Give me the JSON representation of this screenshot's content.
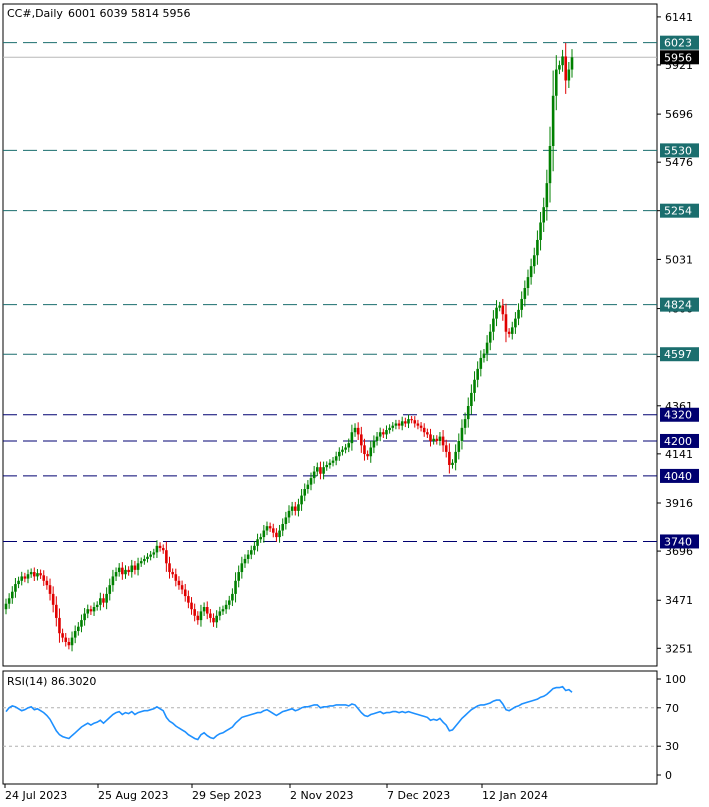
{
  "header": {
    "symbol": "CC#,Daily",
    "ohlc": "6001 6039 5814 5956"
  },
  "rsi_panel": {
    "label": "RSI(14) 86.3020"
  },
  "colors": {
    "bull": "#008000",
    "bear": "#e00000",
    "teal_level": "#1b6e6e",
    "navy_level": "#000070",
    "rsi_line": "#1e90ff",
    "price_label_bg": "#000000"
  },
  "chart_data": [
    {
      "type": "candlestick",
      "title": "CC#,Daily",
      "ylim": [
        3170,
        6200
      ],
      "y_ticks": [
        6141,
        5921,
        5696,
        5476,
        5254,
        5031,
        4806,
        4586,
        4361,
        4141,
        3916,
        3696,
        3471,
        3251
      ],
      "x_ticks": [
        "24 Jul 2023",
        "25 Aug 2023",
        "29 Sep 2023",
        "2 Nov 2023",
        "7 Dec 2023",
        "12 Jan 2024"
      ],
      "current_price": 5956,
      "levels": [
        {
          "value": 6023,
          "style": "teal"
        },
        {
          "value": 5530,
          "style": "teal"
        },
        {
          "value": 5254,
          "style": "teal"
        },
        {
          "value": 4824,
          "style": "teal"
        },
        {
          "value": 4597,
          "style": "teal"
        },
        {
          "value": 4320,
          "style": "navy"
        },
        {
          "value": 4200,
          "style": "navy"
        },
        {
          "value": 4040,
          "style": "navy"
        },
        {
          "value": 3740,
          "style": "navy"
        }
      ],
      "closes": [
        3455,
        3480,
        3510,
        3545,
        3560,
        3580,
        3570,
        3590,
        3600,
        3580,
        3595,
        3585,
        3560,
        3540,
        3500,
        3450,
        3390,
        3320,
        3300,
        3280,
        3265,
        3300,
        3330,
        3350,
        3380,
        3410,
        3430,
        3420,
        3440,
        3450,
        3480,
        3460,
        3500,
        3540,
        3580,
        3600,
        3620,
        3590,
        3610,
        3600,
        3630,
        3610,
        3640,
        3650,
        3660,
        3670,
        3680,
        3690,
        3720,
        3710,
        3700,
        3640,
        3600,
        3590,
        3560,
        3540,
        3520,
        3490,
        3460,
        3430,
        3400,
        3380,
        3420,
        3440,
        3410,
        3390,
        3370,
        3400,
        3420,
        3430,
        3450,
        3470,
        3500,
        3560,
        3600,
        3640,
        3660,
        3680,
        3700,
        3720,
        3750,
        3760,
        3790,
        3810,
        3800,
        3780,
        3760,
        3790,
        3820,
        3850,
        3880,
        3900,
        3880,
        3910,
        3950,
        3980,
        4000,
        4030,
        4060,
        4080,
        4050,
        4080,
        4090,
        4100,
        4110,
        4130,
        4150,
        4160,
        4170,
        4190,
        4240,
        4260,
        4230,
        4180,
        4140,
        4130,
        4170,
        4200,
        4220,
        4240,
        4230,
        4250,
        4260,
        4270,
        4280,
        4270,
        4290,
        4280,
        4300,
        4295,
        4280,
        4270,
        4260,
        4240,
        4230,
        4200,
        4210,
        4200,
        4220,
        4180,
        4150,
        4090,
        4100,
        4150,
        4200,
        4260,
        4300,
        4360,
        4420,
        4480,
        4530,
        4580,
        4600,
        4650,
        4700,
        4760,
        4810,
        4820,
        4780,
        4700,
        4690,
        4720,
        4760,
        4800,
        4850,
        4900,
        4950,
        5000,
        5050,
        5120,
        5200,
        5270,
        5380,
        5550,
        5780,
        5900,
        5920,
        5960,
        5850,
        5900,
        5956
      ]
    },
    {
      "type": "line",
      "title": "RSI(14) 86.3020",
      "ylim": [
        0,
        100
      ],
      "y_ticks": [
        100,
        70,
        30,
        0
      ],
      "reference_levels": [
        70,
        30
      ],
      "values": [
        66,
        70,
        72,
        71,
        69,
        67,
        68,
        70,
        71,
        68,
        69,
        67,
        65,
        62,
        58,
        52,
        46,
        42,
        40,
        39,
        38,
        41,
        44,
        47,
        50,
        52,
        54,
        52,
        54,
        55,
        57,
        54,
        57,
        60,
        63,
        65,
        66,
        63,
        65,
        64,
        66,
        63,
        65,
        66,
        67,
        67,
        68,
        69,
        71,
        69,
        67,
        60,
        56,
        54,
        51,
        49,
        47,
        45,
        42,
        40,
        38,
        37,
        42,
        44,
        41,
        39,
        38,
        41,
        43,
        44,
        46,
        48,
        50,
        54,
        57,
        60,
        61,
        62,
        63,
        64,
        65,
        65,
        67,
        68,
        66,
        64,
        62,
        64,
        66,
        67,
        68,
        69,
        67,
        68,
        70,
        71,
        71,
        72,
        73,
        73,
        70,
        71,
        71,
        72,
        72,
        73,
        73,
        73,
        73,
        72,
        74,
        73,
        69,
        65,
        62,
        61,
        63,
        64,
        65,
        66,
        64,
        65,
        65,
        66,
        66,
        65,
        66,
        65,
        66,
        65,
        64,
        63,
        62,
        61,
        60,
        57,
        58,
        57,
        59,
        55,
        52,
        46,
        47,
        51,
        55,
        59,
        62,
        65,
        68,
        70,
        72,
        73,
        73,
        74,
        75,
        77,
        78,
        78,
        74,
        68,
        67,
        69,
        71,
        72,
        74,
        75,
        76,
        77,
        78,
        79,
        81,
        82,
        84,
        87,
        90,
        91,
        91,
        92,
        88,
        89,
        86.3
      ]
    }
  ]
}
